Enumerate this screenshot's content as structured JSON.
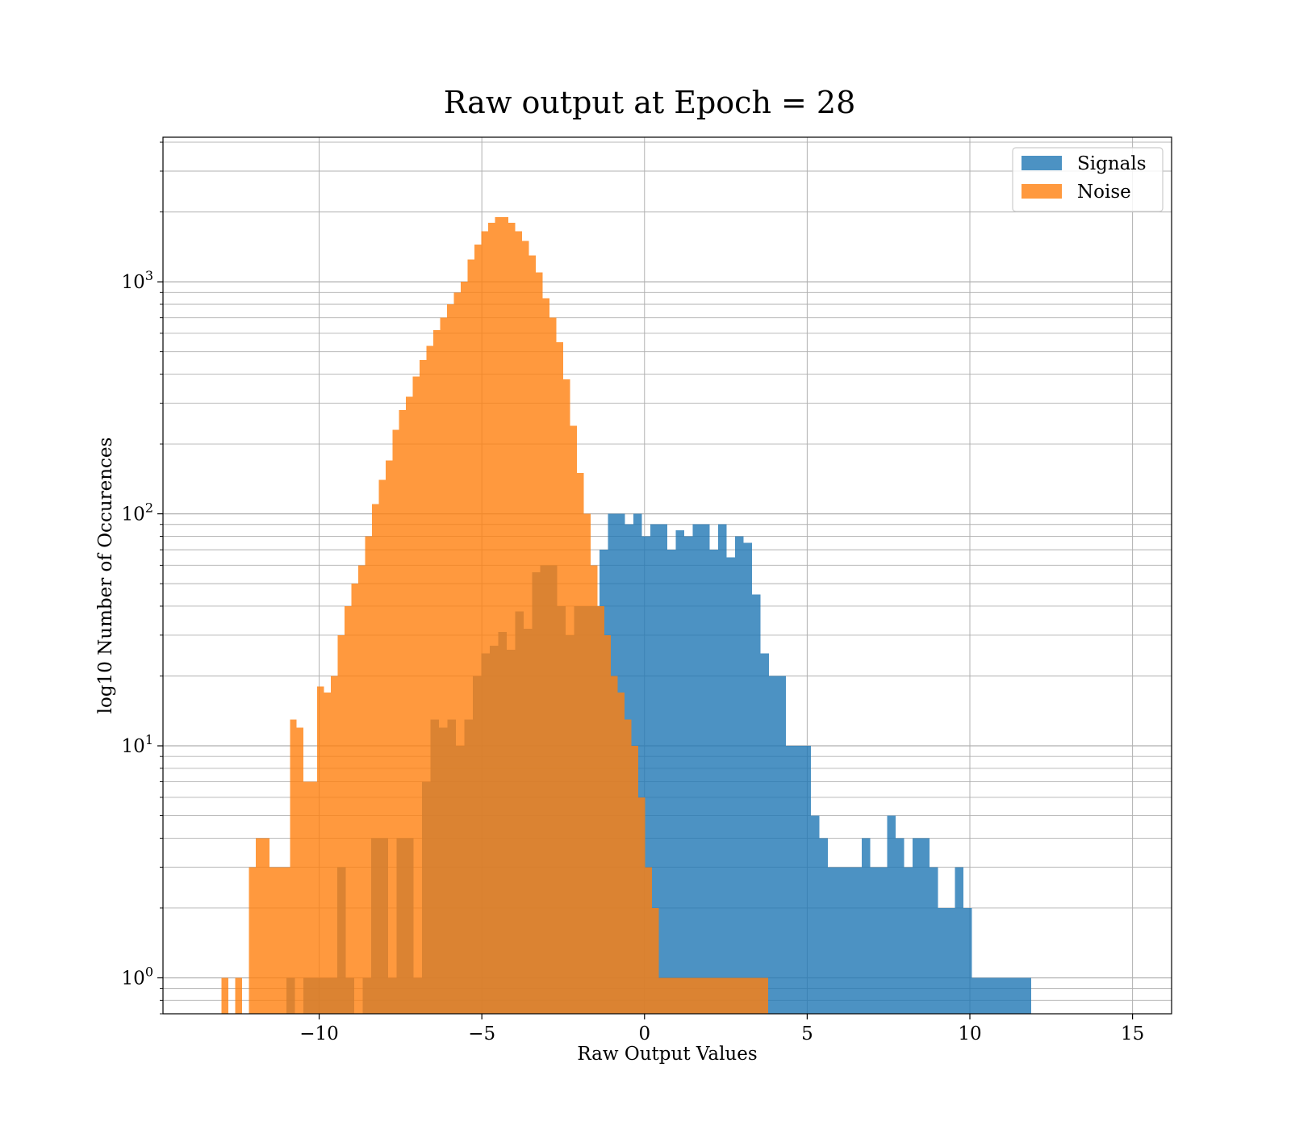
{
  "colors": {
    "background": "#ffffff",
    "grid": "#b0b0b0",
    "axes": "#000000"
  },
  "chart_data": {
    "type": "bar",
    "subtype": "histogram",
    "title": "Raw output at Epoch = 28",
    "xlabel": "Raw Output Values",
    "ylabel": "log10 Number of Occurences",
    "xscale": "linear",
    "yscale": "log",
    "xlim": [
      -14.8,
      16.2
    ],
    "ylim": [
      0.7,
      4200
    ],
    "x_ticks": [
      -10,
      -5,
      0,
      5,
      10,
      15
    ],
    "x_tick_labels": [
      "−10",
      "−5",
      "0",
      "5",
      "10",
      "15"
    ],
    "y_ticks": [
      1,
      10,
      100,
      1000
    ],
    "y_tick_bases": [
      "10",
      "10",
      "10",
      "10"
    ],
    "y_tick_exponents": [
      "0",
      "1",
      "2",
      "3"
    ],
    "grid": true,
    "grid_minor_y": true,
    "legend": {
      "position": "top-right"
    },
    "series": [
      {
        "name": "Signals",
        "color": "#1f77b4",
        "opacity": 0.8,
        "bin_start": -11.0,
        "bin_width": 0.26,
        "counts": [
          1,
          0,
          1,
          1,
          1,
          1,
          3,
          1,
          0,
          1,
          4,
          4,
          1,
          4,
          4,
          1,
          7,
          13,
          12,
          13,
          10,
          13,
          20,
          25,
          27,
          31,
          26,
          38,
          32,
          56,
          60,
          60,
          40,
          30,
          40,
          40,
          40,
          70,
          100,
          100,
          90,
          100,
          80,
          90,
          90,
          70,
          85,
          80,
          90,
          90,
          70,
          90,
          65,
          80,
          75,
          45,
          25,
          20,
          20,
          10,
          10,
          10,
          5,
          4,
          3,
          3,
          3,
          3,
          4,
          3,
          3,
          5,
          4,
          3,
          4,
          4,
          3,
          2,
          2,
          3,
          2,
          1,
          1,
          1,
          1,
          1,
          1,
          1
        ]
      },
      {
        "name": "Noise",
        "color": "#ff7f0e",
        "opacity": 0.8,
        "bin_start": -13.0,
        "bin_width": 0.21,
        "counts": [
          1,
          0,
          1,
          0,
          3,
          4,
          4,
          3,
          3,
          3,
          13,
          12,
          7,
          7,
          18,
          17,
          20,
          30,
          40,
          50,
          60,
          80,
          110,
          140,
          170,
          230,
          280,
          320,
          390,
          460,
          530,
          620,
          700,
          800,
          900,
          1000,
          1250,
          1450,
          1650,
          1800,
          1900,
          1900,
          1800,
          1650,
          1500,
          1300,
          1100,
          850,
          700,
          550,
          380,
          240,
          150,
          100,
          60,
          40,
          30,
          20,
          17,
          13,
          10,
          6,
          3,
          2,
          1,
          1,
          1,
          1,
          1,
          1,
          1,
          1,
          1,
          1,
          1,
          1,
          1,
          1,
          1,
          1
        ]
      }
    ]
  }
}
